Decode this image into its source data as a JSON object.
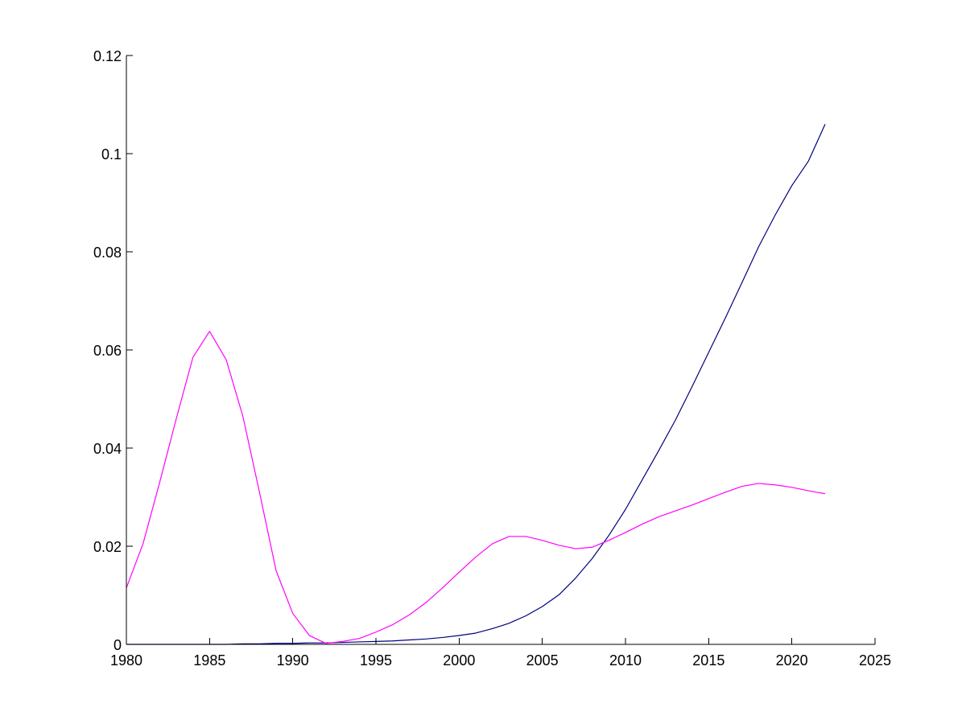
{
  "chart_data": {
    "type": "line",
    "title": "",
    "xlabel": "",
    "ylabel": "",
    "xlim": [
      1980,
      2025
    ],
    "ylim": [
      0,
      0.12
    ],
    "grid": false,
    "legend": "none",
    "x_ticks": [
      1980,
      1985,
      1990,
      1995,
      2000,
      2005,
      2010,
      2015,
      2020,
      2025
    ],
    "x_tick_labels": [
      "1980",
      "1985",
      "1990",
      "1995",
      "2000",
      "2005",
      "2010",
      "2015",
      "2020",
      "2025"
    ],
    "y_ticks": [
      0,
      0.02,
      0.04,
      0.06,
      0.08,
      0.1,
      0.12
    ],
    "y_tick_labels": [
      "0",
      "0.02",
      "0.04",
      "0.06",
      "0.08",
      "0.1",
      "0.12"
    ],
    "x": [
      1980,
      1981,
      1982,
      1983,
      1984,
      1985,
      1986,
      1987,
      1988,
      1989,
      1990,
      1991,
      1992,
      1993,
      1994,
      1995,
      1996,
      1997,
      1998,
      1999,
      2000,
      2001,
      2002,
      2003,
      2004,
      2005,
      2006,
      2007,
      2008,
      2009,
      2010,
      2011,
      2012,
      2013,
      2014,
      2015,
      2016,
      2017,
      2018,
      2019,
      2020,
      2021,
      2022
    ],
    "series": [
      {
        "color": "#00007f",
        "values": [
          0.0,
          0.0,
          0.0,
          0.0,
          0.0,
          0.0,
          0.0,
          0.0001,
          0.0001,
          0.0002,
          0.0002,
          0.0003,
          0.0003,
          0.0004,
          0.0005,
          0.0006,
          0.0007,
          0.0009,
          0.0011,
          0.0014,
          0.0018,
          0.0023,
          0.0032,
          0.0043,
          0.0058,
          0.0077,
          0.0101,
          0.0135,
          0.0175,
          0.0222,
          0.0275,
          0.0335,
          0.0395,
          0.0457,
          0.0525,
          0.0595,
          0.0665,
          0.0737,
          0.081,
          0.0875,
          0.0935,
          0.0985,
          0.106
        ]
      },
      {
        "color": "#ff00ff",
        "values": [
          0.0115,
          0.0205,
          0.033,
          0.046,
          0.0585,
          0.0638,
          0.058,
          0.0465,
          0.031,
          0.015,
          0.0063,
          0.0018,
          0.0002,
          0.0006,
          0.0012,
          0.0025,
          0.004,
          0.006,
          0.0085,
          0.0115,
          0.0147,
          0.0178,
          0.0205,
          0.022,
          0.022,
          0.0212,
          0.0202,
          0.0195,
          0.0198,
          0.0212,
          0.0228,
          0.0245,
          0.026,
          0.0272,
          0.0284,
          0.0297,
          0.031,
          0.0322,
          0.0328,
          0.0325,
          0.032,
          0.0313,
          0.0307
        ]
      }
    ]
  }
}
